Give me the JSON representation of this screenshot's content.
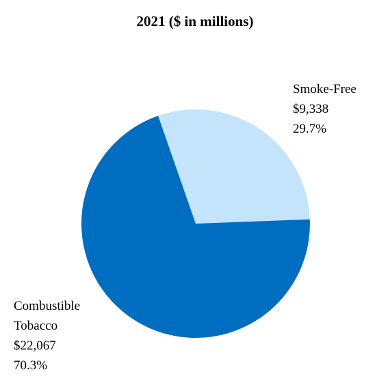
{
  "chart_data": {
    "type": "pie",
    "title": "2021 ($ in millions)",
    "categories": [
      "Smoke-Free",
      "Combustible Tobacco"
    ],
    "values": [
      9338,
      22067
    ],
    "value_labels": [
      "$9,338",
      "$22,067"
    ],
    "percent_labels": [
      "29.7%",
      "70.3%"
    ],
    "colors": [
      "#c3e4fb",
      "#006ec0"
    ],
    "label_lines": [
      [
        "Smoke-Free",
        "$9,338",
        "29.7%"
      ],
      [
        "Combustible",
        "Tobacco",
        "$22,067",
        "70.3%"
      ]
    ]
  }
}
